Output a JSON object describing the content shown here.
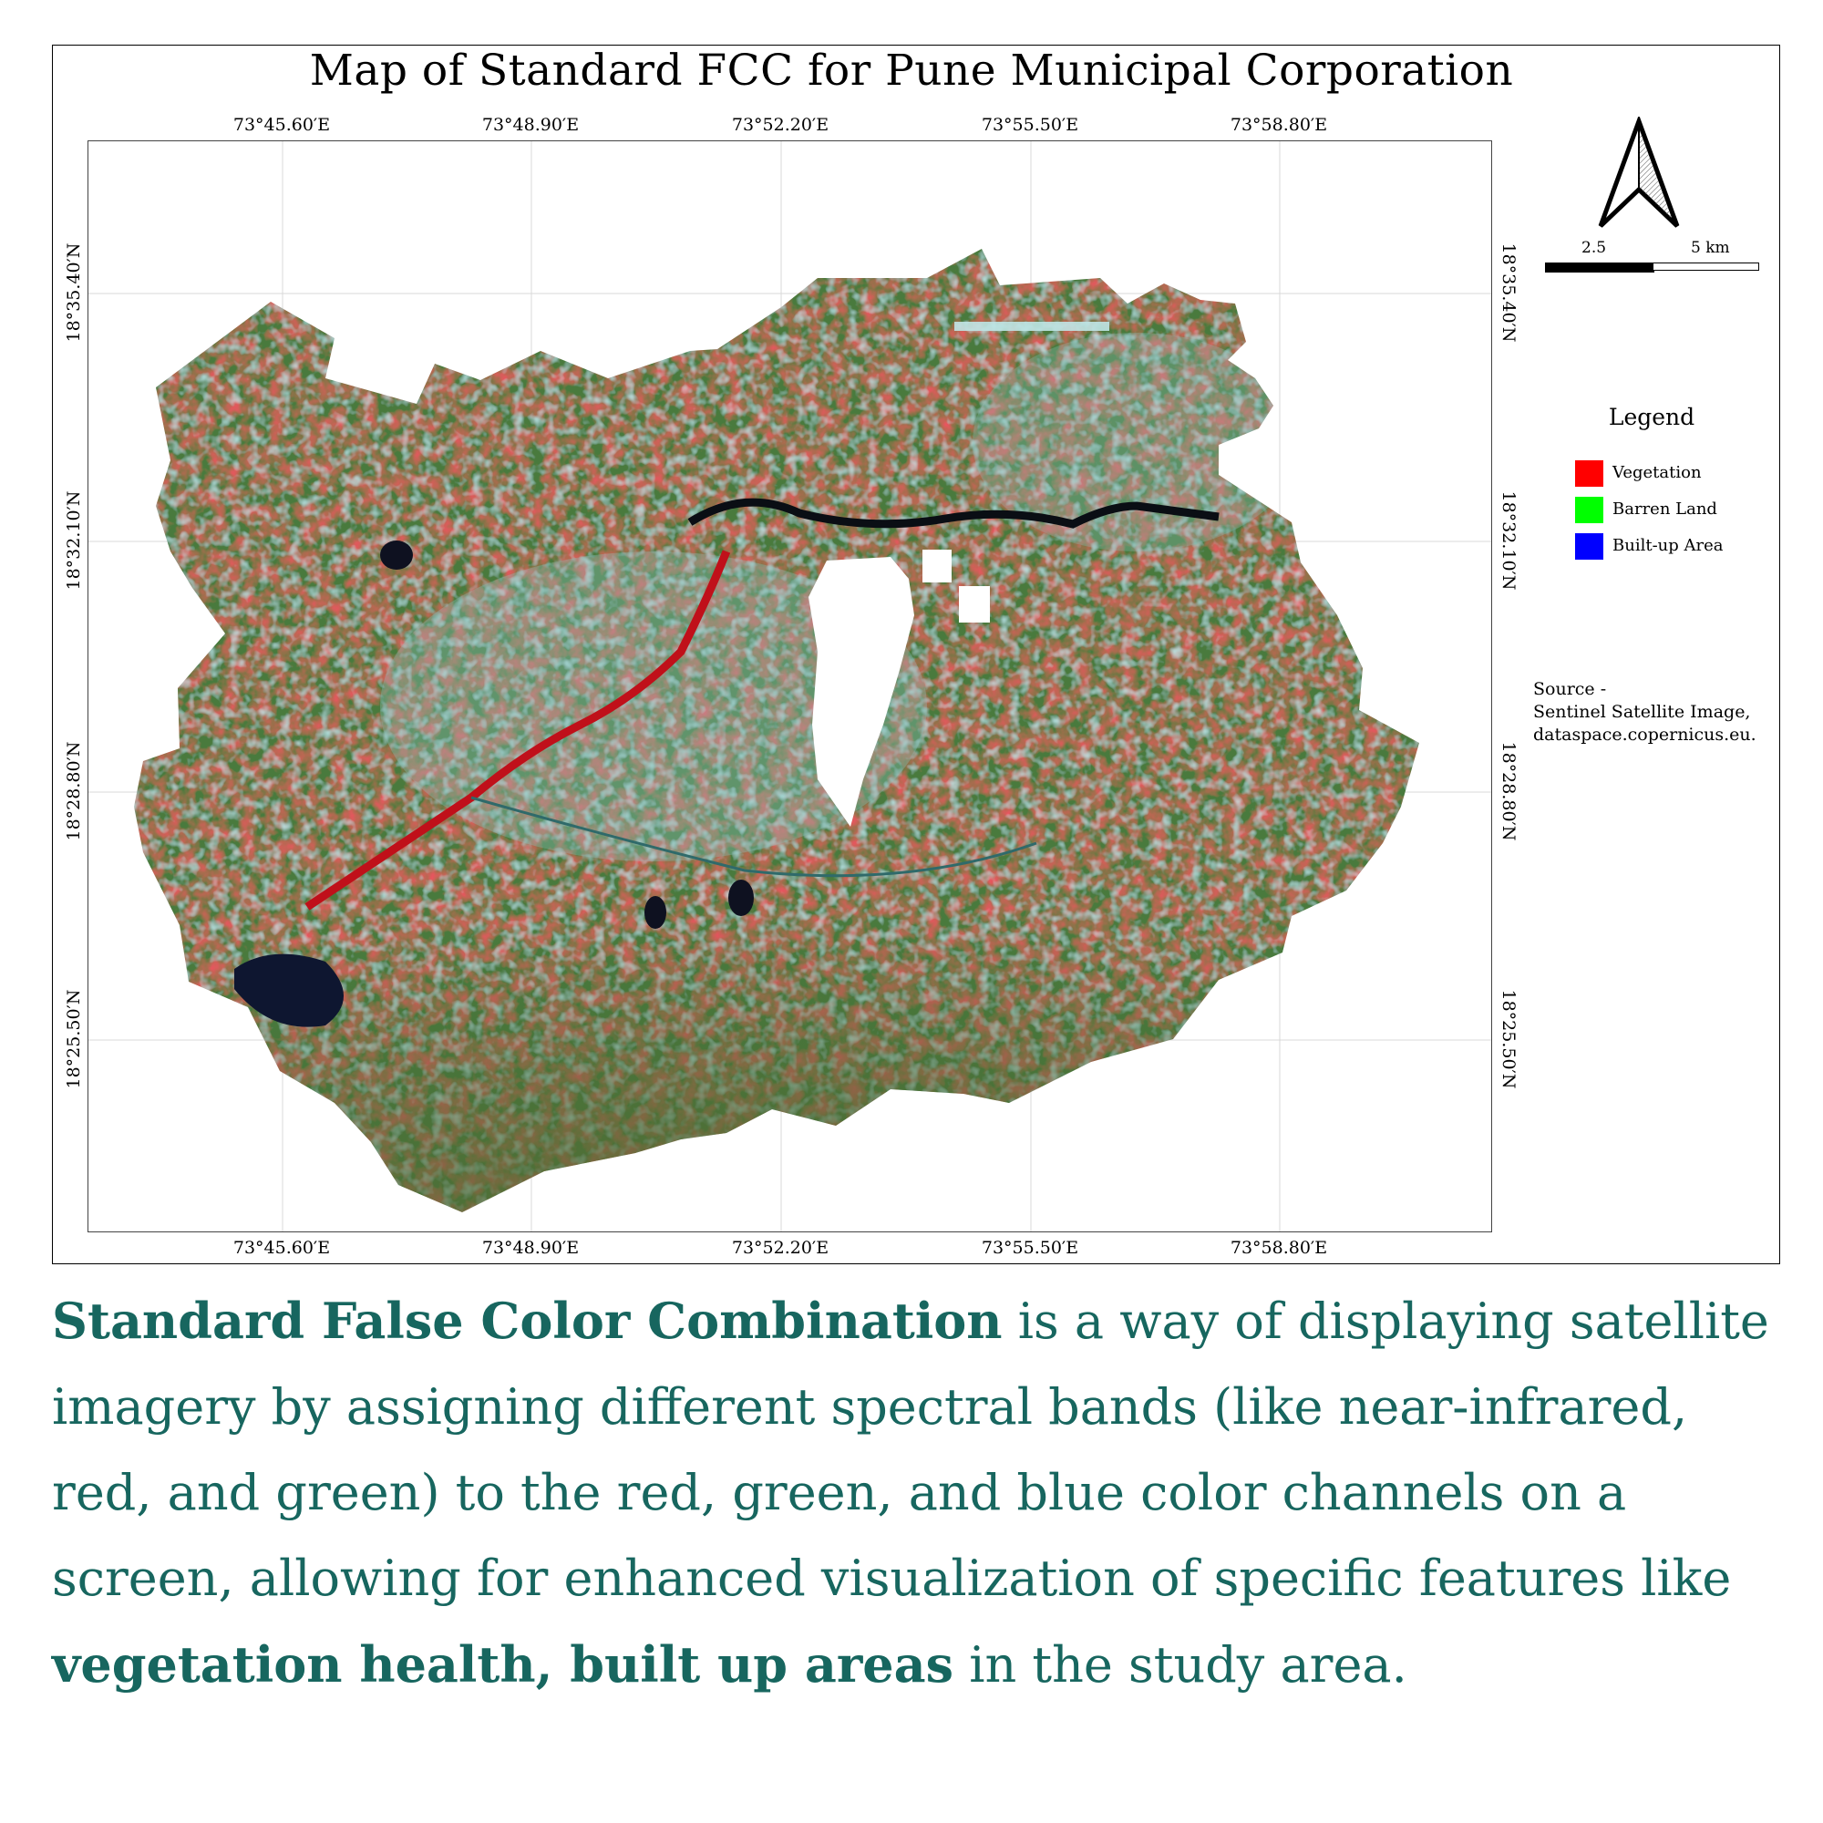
{
  "map": {
    "title": "Map of Standard FCC for Pune Municipal Corporation",
    "longitude_ticks": [
      "73°45.60′E",
      "73°48.90′E",
      "73°52.20′E",
      "73°55.50′E",
      "73°58.80′E"
    ],
    "latitude_ticks": [
      "18°35.40′N",
      "18°32.10′N",
      "18°28.80′N",
      "18°25.50′N"
    ],
    "scale_bar": {
      "labels": [
        "2.5",
        "5 km"
      ]
    },
    "north_arrow_icon": "north-arrow-icon",
    "colors": {
      "vegetation": "#e0141e",
      "barren": "#3f6e32",
      "builtup": "#7ec9c6",
      "water": "#0e1630"
    }
  },
  "legend": {
    "title": "Legend",
    "items": [
      {
        "label": "Vegetation",
        "color": "#ff0000"
      },
      {
        "label": "Barren Land",
        "color": "#00ff00"
      },
      {
        "label": "Built-up Area",
        "color": "#0000ff"
      }
    ]
  },
  "source": {
    "line1": "Source -",
    "line2": "Sentinel Satellite Image,",
    "line3": "dataspace.copernicus.eu."
  },
  "description": {
    "bold1": "Standard False Color Combination",
    "text1": " is a way of displaying satellite imagery by assigning different spectral bands (like near-infrared, red, and green) to the red, green, and blue color channels on a screen, allowing for enhanced visualization of specific features like ",
    "bold2": "vegetation health, built up areas",
    "text2": " in the study area."
  }
}
